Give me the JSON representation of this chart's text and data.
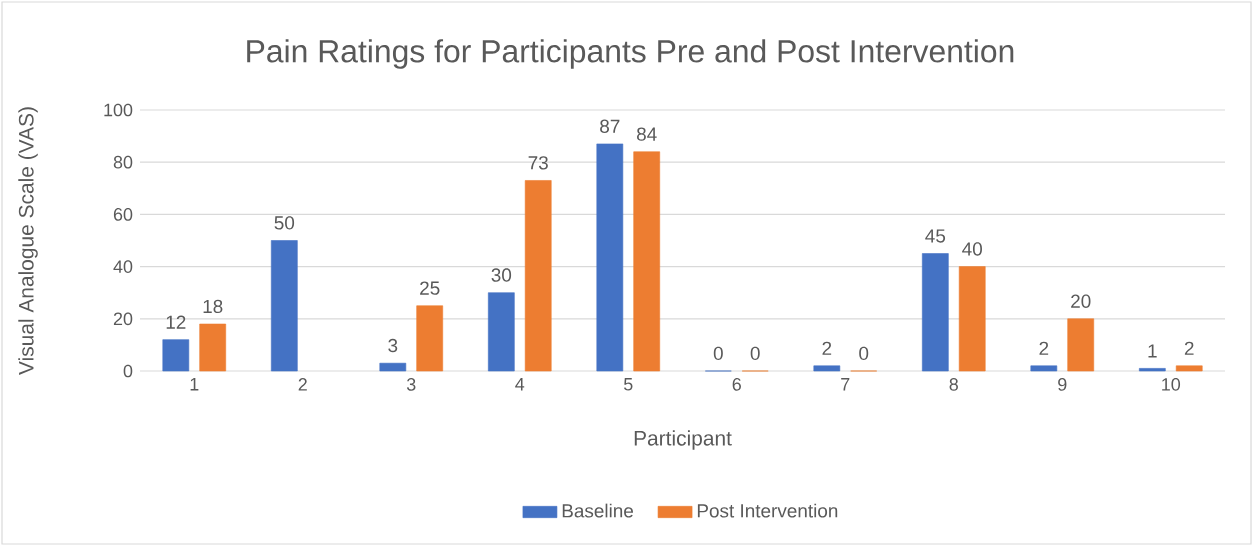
{
  "chart_data": {
    "type": "bar",
    "title": "Pain Ratings for Participants Pre and Post Intervention",
    "xlabel": "Participant",
    "ylabel": "Visual Analogue Scale (VAS)",
    "categories": [
      "1",
      "2",
      "3",
      "4",
      "5",
      "6",
      "7",
      "8",
      "9",
      "10"
    ],
    "series": [
      {
        "name": "Baseline",
        "color": "#4472c4",
        "values": [
          12,
          50,
          3,
          30,
          87,
          0,
          2,
          45,
          2,
          1
        ]
      },
      {
        "name": "Post Intervention",
        "color": "#ed7d31",
        "values": [
          18,
          null,
          25,
          73,
          84,
          0,
          0,
          40,
          20,
          2
        ]
      }
    ],
    "ylim": [
      0,
      100
    ],
    "yticks": [
      0,
      20,
      40,
      60,
      80,
      100
    ],
    "grid": "y",
    "legend": "bottom",
    "data_labels": true
  }
}
